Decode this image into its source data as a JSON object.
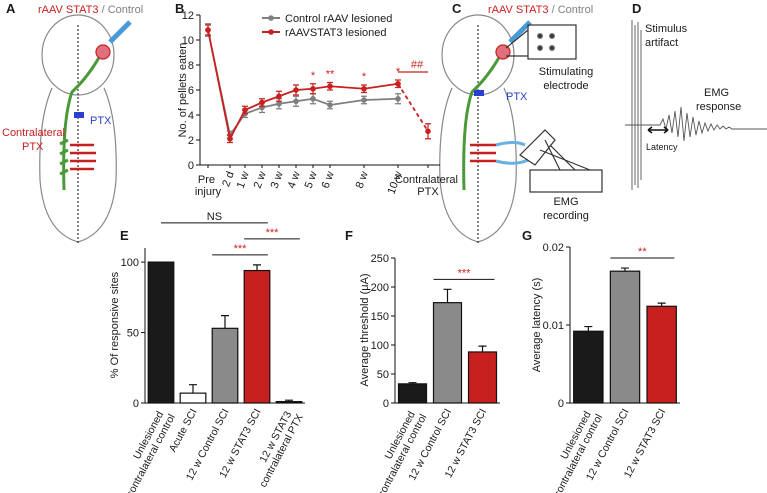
{
  "diagrams": {
    "A": {
      "panel": "A",
      "virus": "rAAV STAT3",
      "control": "/ Control",
      "contralateral": "Contralateral",
      "contralateral_ptx": "PTX",
      "ptx": "PTX"
    },
    "C": {
      "panel": "C",
      "virus": "rAAV STAT3",
      "control": "/ Control",
      "ptx": "PTX",
      "electrode": [
        "Stimulating",
        "electrode"
      ],
      "emg": [
        "EMG",
        "recording"
      ]
    },
    "D": {
      "panel": "D",
      "artifact": [
        "Stimulus",
        "artifact"
      ],
      "response": [
        "EMG",
        "response"
      ],
      "latency": "Latency"
    }
  },
  "chart_data": [
    {
      "panel": "B",
      "type": "line",
      "y_label": "No. of pellets eaten",
      "categories": [
        "Pre injury",
        "2 d",
        "1 w",
        "2 w",
        "3 w",
        "4 w",
        "5 w",
        "6 w",
        "8 w",
        "10 w",
        "Contralateral PTX"
      ],
      "ylim": [
        0,
        12
      ],
      "yticks": [
        0,
        2,
        4,
        6,
        8,
        10,
        12
      ],
      "series": [
        {
          "name": "Control rAAV lesioned",
          "color": "#7f7f7f",
          "values": [
            10.8,
            2.4,
            4.1,
            4.6,
            4.9,
            5.1,
            5.3,
            4.8,
            5.2,
            5.3,
            null
          ],
          "errors": [
            0.5,
            0.3,
            0.3,
            0.4,
            0.4,
            0.4,
            0.4,
            0.3,
            0.3,
            0.4,
            null
          ]
        },
        {
          "name": "rAAVSTAT3 lesioned",
          "color": "#c8201e",
          "dashed_last": true,
          "values": [
            10.8,
            2.1,
            4.4,
            5.0,
            5.5,
            6.0,
            6.1,
            6.3,
            6.1,
            6.5,
            2.7
          ],
          "errors": [
            0.4,
            0.3,
            0.3,
            0.3,
            0.4,
            0.4,
            0.4,
            0.3,
            0.3,
            0.3,
            0.6
          ]
        }
      ],
      "annotations": [
        {
          "text": "*",
          "at": "5 w",
          "color": "#c8201e"
        },
        {
          "text": "**",
          "at": "6 w",
          "color": "#c8201e"
        },
        {
          "text": "*",
          "at": "8 w",
          "color": "#c8201e"
        },
        {
          "text": "*",
          "at": "10 w",
          "color": "#c8201e"
        },
        {
          "text": "##",
          "from": "10 w",
          "to": "Contralateral PTX",
          "color": "#c8201e"
        }
      ]
    },
    {
      "panel": "E",
      "type": "bar",
      "y_label": "% Of responsive sites",
      "categories": [
        "Unlesioned contralateral control",
        "Acute SCI",
        "12 w Control SCI",
        "12 w STAT3 SCI",
        "12 w STAT3 contralateral PTX"
      ],
      "values": [
        100,
        7,
        53,
        94,
        1
      ],
      "errors": [
        0,
        6,
        9,
        4,
        1
      ],
      "colors": [
        "#1a1a1a",
        "#ffffff",
        "#8a8a8a",
        "#c8201e",
        "#1a1a1a"
      ],
      "ylim": [
        0,
        110
      ],
      "yticks": [
        0,
        50,
        100
      ],
      "annotations": [
        {
          "text": "***",
          "from": "12 w Control SCI",
          "to": "12 w STAT3 SCI",
          "color": "#c8201e"
        },
        {
          "text": "***",
          "from": "12 w STAT3 SCI",
          "to": "12 w STAT3 contralateral PTX",
          "color": "#c8201e"
        },
        {
          "text": "NS",
          "from": "Unlesioned contralateral control",
          "to": "12 w STAT3 SCI",
          "color": "#1a1a1a"
        }
      ]
    },
    {
      "panel": "F",
      "type": "bar",
      "y_label": "Average threshold (μA)",
      "categories": [
        "Unlesioned contralateral control",
        "12 w Control SCI",
        "12 w STAT3 SCI"
      ],
      "values": [
        33,
        173,
        88
      ],
      "errors": [
        2,
        23,
        10
      ],
      "colors": [
        "#1a1a1a",
        "#8a8a8a",
        "#c8201e"
      ],
      "ylim": [
        0,
        250
      ],
      "yticks": [
        0,
        50,
        100,
        150,
        200,
        250
      ],
      "annotations": [
        {
          "text": "***",
          "from": "12 w Control SCI",
          "to": "12 w STAT3 SCI",
          "color": "#c8201e"
        }
      ]
    },
    {
      "panel": "G",
      "type": "bar",
      "y_label": "Average latency (s)",
      "categories": [
        "Unlesioned contralateral control",
        "12 w Control SCI",
        "12 w STAT3 SCI"
      ],
      "values": [
        0.0092,
        0.0169,
        0.0124
      ],
      "errors": [
        0.0006,
        0.0004,
        0.0004
      ],
      "colors": [
        "#1a1a1a",
        "#8a8a8a",
        "#c8201e"
      ],
      "ylim": [
        0,
        0.02
      ],
      "yticks": [
        0,
        0.01,
        0.02
      ],
      "annotations": [
        {
          "text": "**",
          "from": "12 w Control SCI",
          "to": "12 w STAT3 SCI",
          "color": "#c8201e"
        }
      ]
    }
  ]
}
